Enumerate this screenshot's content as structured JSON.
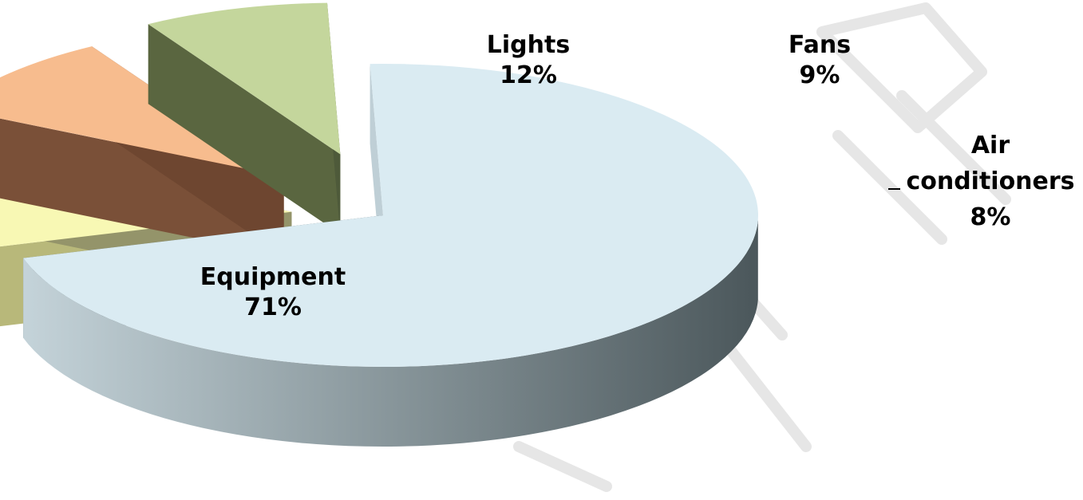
{
  "chart_data": {
    "type": "pie",
    "style": "3d-exploded",
    "title": "",
    "legend": "none",
    "slices": [
      {
        "label": "Equipment",
        "pct_label": "71%",
        "value": 71,
        "colors": {
          "top": "#daebf2",
          "side_light": "#bfcfd6",
          "side_dark": "#4d5a5e"
        }
      },
      {
        "label": "Lights",
        "pct_label": "12%",
        "value": 12,
        "colors": {
          "top": "#f8f8b4",
          "side_light": "#b8b87a",
          "side_dark": "#94946a"
        }
      },
      {
        "label": "Fans",
        "pct_label": "9%",
        "value": 9,
        "colors": {
          "top": "#f7bc8e",
          "side_light": "#7a5038",
          "side_dark": "#6e4630"
        }
      },
      {
        "label": "Air conditioners",
        "label_lines": [
          "Air",
          "conditioners"
        ],
        "pct_label": "8%",
        "value": 8,
        "colors": {
          "top": "#c4d69c",
          "side_light": "#5a6640",
          "side_dark": "#4e5a3a"
        }
      }
    ]
  }
}
